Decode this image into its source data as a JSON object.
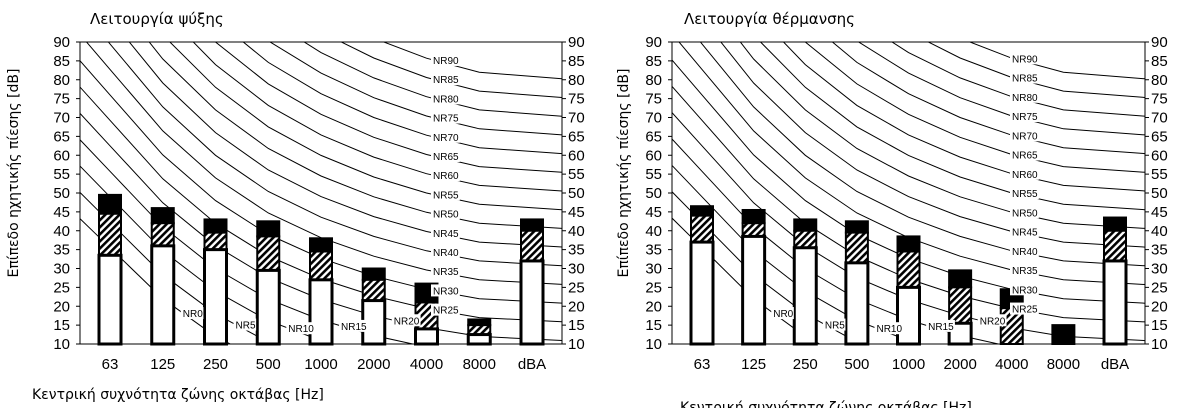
{
  "chart_data": [
    {
      "type": "bar",
      "title": "Λειτουργία ψύξης",
      "xlabel": "Κεντρική συχνότητα ζώνης οκτάβας [Hz]",
      "ylabel": "Επίπεδο ηχητικής πίεσης [dB]",
      "ylim": [
        10,
        90
      ],
      "yticks": [
        10,
        15,
        20,
        25,
        30,
        35,
        40,
        45,
        50,
        55,
        60,
        65,
        70,
        75,
        80,
        85,
        90
      ],
      "categories": [
        "63",
        "125",
        "250",
        "500",
        "1000",
        "2000",
        "4000",
        "8000",
        "dBA"
      ],
      "bars": [
        {
          "white_top": 33.5,
          "hatch_top": 44.5,
          "black_top": 49.5
        },
        {
          "white_top": 36,
          "hatch_top": 42,
          "black_top": 46
        },
        {
          "white_top": 35,
          "hatch_top": 39.5,
          "black_top": 43
        },
        {
          "white_top": 29.5,
          "hatch_top": 38.5,
          "black_top": 42.5
        },
        {
          "white_top": 27,
          "hatch_top": 34.5,
          "black_top": 38
        },
        {
          "white_top": 21.5,
          "hatch_top": 27,
          "black_top": 30
        },
        {
          "white_top": 14,
          "hatch_top": 21,
          "black_top": 26
        },
        {
          "white_top": 12.5,
          "hatch_top": 15,
          "black_top": 16.5
        },
        {
          "white_top": 32,
          "hatch_top": 40,
          "black_top": 43
        }
      ],
      "nr_labels": [
        "NR0",
        "NR5",
        "NR10",
        "NR15",
        "NR20",
        "NR25",
        "NR30",
        "NR35",
        "NR40",
        "NR45",
        "NR50",
        "NR55",
        "NR60",
        "NR65",
        "NR70",
        "NR75",
        "NR80",
        "NR85",
        "NR90"
      ],
      "grid": false
    },
    {
      "type": "bar",
      "title": "Λειτουργία θέρμανσης",
      "xlabel": "Κεντρική συχνότητα ζώνης οκτάβας [Hz]",
      "ylabel": "Επίπεδο ηχητικής πίεσης [dB]",
      "ylim": [
        10,
        90
      ],
      "yticks": [
        10,
        15,
        20,
        25,
        30,
        35,
        40,
        45,
        50,
        55,
        60,
        65,
        70,
        75,
        80,
        85,
        90
      ],
      "categories": [
        "63",
        "125",
        "250",
        "500",
        "1000",
        "2000",
        "4000",
        "8000",
        "dBA"
      ],
      "bars": [
        {
          "white_top": 37,
          "hatch_top": 44,
          "black_top": 46.5
        },
        {
          "white_top": 38.5,
          "hatch_top": 42,
          "black_top": 45.5
        },
        {
          "white_top": 35.5,
          "hatch_top": 40,
          "black_top": 43
        },
        {
          "white_top": 31.5,
          "hatch_top": 39.5,
          "black_top": 42.5
        },
        {
          "white_top": 25,
          "hatch_top": 34.5,
          "black_top": 38.5
        },
        {
          "white_top": 15.5,
          "hatch_top": 25,
          "black_top": 29.5
        },
        {
          "white_top": 10,
          "hatch_top": 19.5,
          "black_top": 24.5
        },
        {
          "white_top": 10,
          "hatch_top": 10,
          "black_top": 15
        },
        {
          "white_top": 32,
          "hatch_top": 40,
          "black_top": 43.5
        }
      ],
      "nr_labels": [
        "NR0",
        "NR5",
        "NR10",
        "NR15",
        "NR20",
        "NR25",
        "NR30",
        "NR35",
        "NR40",
        "NR45",
        "NR50",
        "NR55",
        "NR60",
        "NR65",
        "NR70",
        "NR75",
        "NR80",
        "NR85",
        "NR90"
      ],
      "grid": false
    }
  ]
}
